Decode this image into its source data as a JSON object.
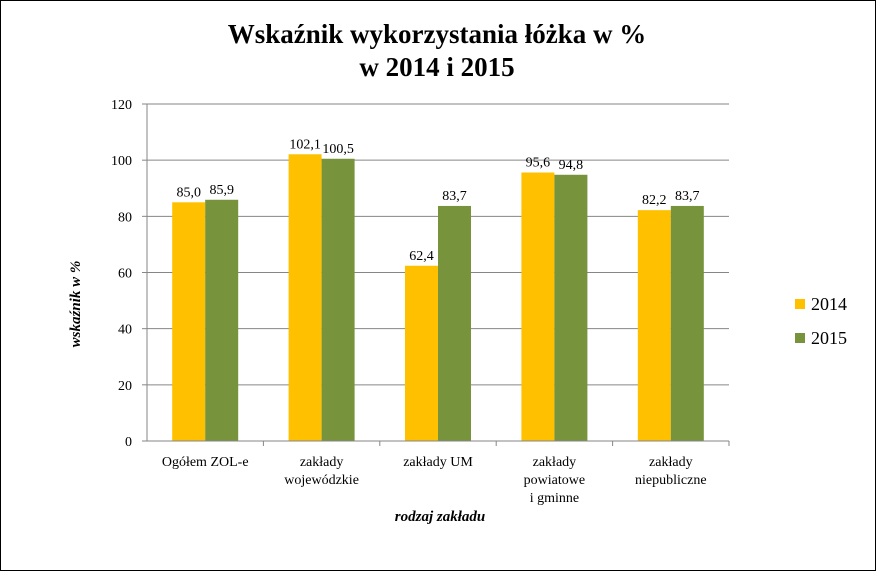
{
  "chart_data": {
    "type": "bar",
    "title_lines": [
      "Wskaźnik wykorzystania łóżka w %",
      "w 2014 i 2015"
    ],
    "xlabel": "rodzaj zakładu",
    "ylabel": "wskaźnik w %",
    "ylim": [
      0,
      120
    ],
    "yticks": [
      0,
      20,
      40,
      60,
      80,
      100,
      120
    ],
    "grid": true,
    "legend_position": "right",
    "categories": [
      [
        "Ogółem ZOL-e"
      ],
      [
        "zakłady",
        "wojewódzkie"
      ],
      [
        "zakłady UM"
      ],
      [
        "zakłady",
        "powiatowe",
        "i gminne"
      ],
      [
        "zakłady",
        "niepubliczne"
      ]
    ],
    "series": [
      {
        "name": "2014",
        "color": "#FFC000",
        "values": [
          85.0,
          102.1,
          62.4,
          95.6,
          82.2
        ],
        "labels": [
          "85,0",
          "102,1",
          "62,4",
          "95,6",
          "82,2"
        ]
      },
      {
        "name": "2015",
        "color": "#77933C",
        "values": [
          85.9,
          100.5,
          83.7,
          94.8,
          83.7
        ],
        "labels": [
          "85,9",
          "100,5",
          "83,7",
          "94,8",
          "83,7"
        ]
      }
    ]
  }
}
